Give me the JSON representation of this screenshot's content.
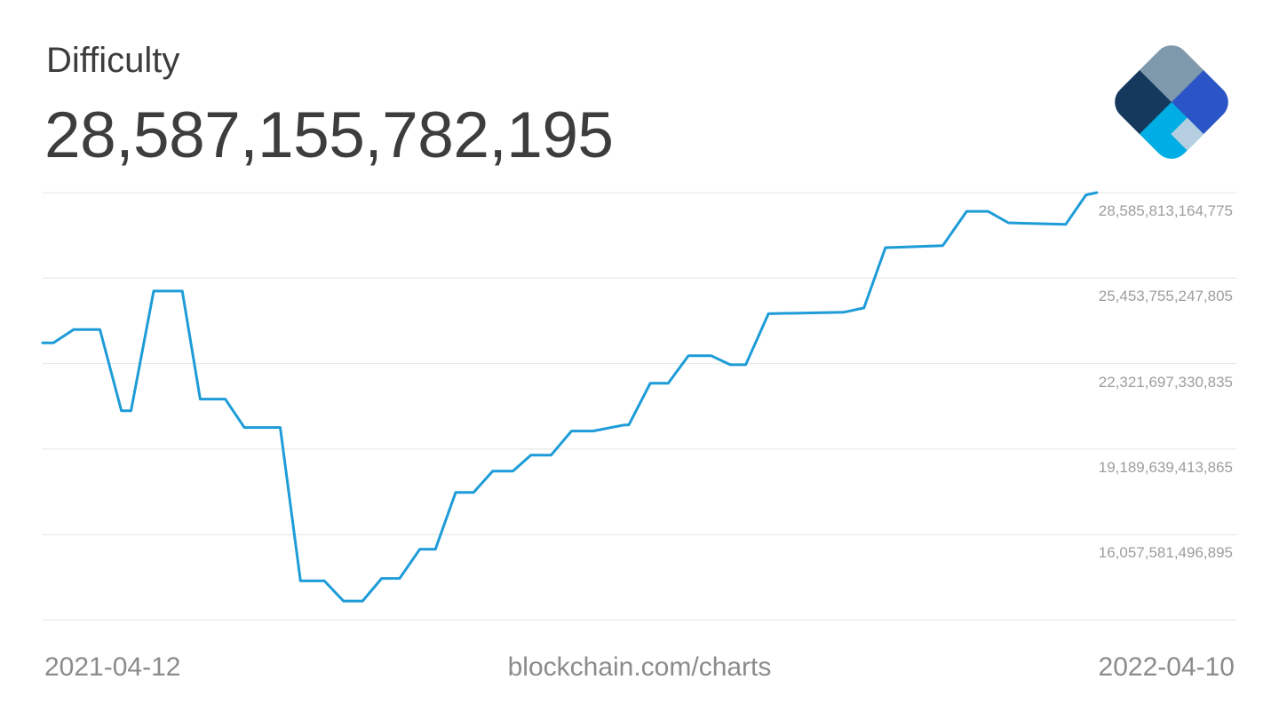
{
  "header": {
    "title": "Difficulty",
    "current_value": "28,587,155,782,195"
  },
  "logo": {
    "name": "blockchain-com-logo",
    "colors": {
      "top": "#7e99ab",
      "right": "#2b55c6",
      "left": "#15395d",
      "bottom": "#00ade5",
      "bottom_right_accent": "#b5cfe0"
    }
  },
  "footer": {
    "start_date": "2021-04-12",
    "watermark": "blockchain.com/charts",
    "end_date": "2022-04-10"
  },
  "chart_data": {
    "type": "line",
    "title": "Difficulty",
    "subtitle_current_value": "28,587,155,782,195",
    "line_color": "#1d9cd8",
    "grid_color": "#e4e4e4",
    "legend": "none",
    "grid": "horizontal-only",
    "x_start_label": "2021-04-12",
    "x_end_label": "2022-04-10",
    "y_ticks": [
      "28,585,813,164,775",
      "25,453,755,247,805",
      "22,321,697,330,835",
      "19,189,639,413,865",
      "16,057,581,496,895"
    ],
    "y_tick_values": [
      28585813164775,
      25453755247805,
      22321697330835,
      19189639413865,
      16057581496895
    ],
    "y_axis_top_value": 28585813164775,
    "y_axis_bottom_value": 12925523579925,
    "gridline_count": 6,
    "points": [
      [
        0.0,
        23080000000000
      ],
      [
        0.009,
        23080000000000
      ],
      [
        0.026,
        23570000000000
      ],
      [
        0.048,
        23570000000000
      ],
      [
        0.066,
        20590000000000
      ],
      [
        0.074,
        20590000000000
      ],
      [
        0.093,
        24980000000000
      ],
      [
        0.117,
        24980000000000
      ],
      [
        0.132,
        21020000000000
      ],
      [
        0.153,
        21020000000000
      ],
      [
        0.169,
        19980000000000
      ],
      [
        0.199,
        19980000000000
      ],
      [
        0.216,
        14360000000000
      ],
      [
        0.236,
        14360000000000
      ],
      [
        0.252,
        13620000000000
      ],
      [
        0.268,
        13620000000000
      ],
      [
        0.284,
        14450000000000
      ],
      [
        0.299,
        14450000000000
      ],
      [
        0.316,
        15520000000000
      ],
      [
        0.329,
        15520000000000
      ],
      [
        0.346,
        17600000000000
      ],
      [
        0.361,
        17600000000000
      ],
      [
        0.377,
        18380000000000
      ],
      [
        0.394,
        18380000000000
      ],
      [
        0.409,
        18970000000000
      ],
      [
        0.426,
        18970000000000
      ],
      [
        0.443,
        19850000000000
      ],
      [
        0.461,
        19850000000000
      ],
      [
        0.487,
        20070000000000
      ],
      [
        0.491,
        20070000000000
      ],
      [
        0.509,
        21600000000000
      ],
      [
        0.524,
        21600000000000
      ],
      [
        0.541,
        22610000000000
      ],
      [
        0.56,
        22610000000000
      ],
      [
        0.576,
        22280000000000
      ],
      [
        0.589,
        22280000000000
      ],
      [
        0.608,
        24150000000000
      ],
      [
        0.671,
        24200000000000
      ],
      [
        0.688,
        24360000000000
      ],
      [
        0.706,
        26570000000000
      ],
      [
        0.754,
        26640000000000
      ],
      [
        0.774,
        27900000000000
      ],
      [
        0.792,
        27900000000000
      ],
      [
        0.809,
        27480000000000
      ],
      [
        0.857,
        27420000000000
      ],
      [
        0.874,
        28500000000000
      ],
      [
        0.883,
        28587155782195
      ]
    ]
  }
}
